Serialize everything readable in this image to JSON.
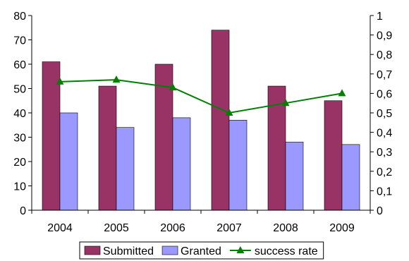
{
  "chart_data": {
    "type": "bar",
    "categories": [
      "2004",
      "2005",
      "2006",
      "2007",
      "2008",
      "2009"
    ],
    "series": [
      {
        "name": "Submitted",
        "type": "bar",
        "axis": "left",
        "color": "#993366",
        "values": [
          61,
          51,
          60,
          74,
          51,
          45
        ]
      },
      {
        "name": "Granted",
        "type": "bar",
        "axis": "left",
        "color": "#9999ff",
        "values": [
          40,
          34,
          38,
          37,
          28,
          27
        ]
      },
      {
        "name": "success rate",
        "type": "line",
        "axis": "right",
        "color": "#008000",
        "marker": "triangle",
        "values": [
          0.66,
          0.67,
          0.63,
          0.5,
          0.55,
          0.6
        ]
      }
    ],
    "y_left": {
      "min": 0,
      "max": 80,
      "ticks": [
        "0",
        "10",
        "20",
        "30",
        "40",
        "50",
        "60",
        "70",
        "80"
      ]
    },
    "y_right": {
      "min": 0,
      "max": 1,
      "ticks": [
        "0",
        "0,1",
        "0,2",
        "0,3",
        "0,4",
        "0,5",
        "0,6",
        "0,7",
        "0,8",
        "0,9",
        "1"
      ]
    },
    "grid": false,
    "legend_position": "bottom",
    "title": "",
    "xlabel": "",
    "ylabel": ""
  }
}
